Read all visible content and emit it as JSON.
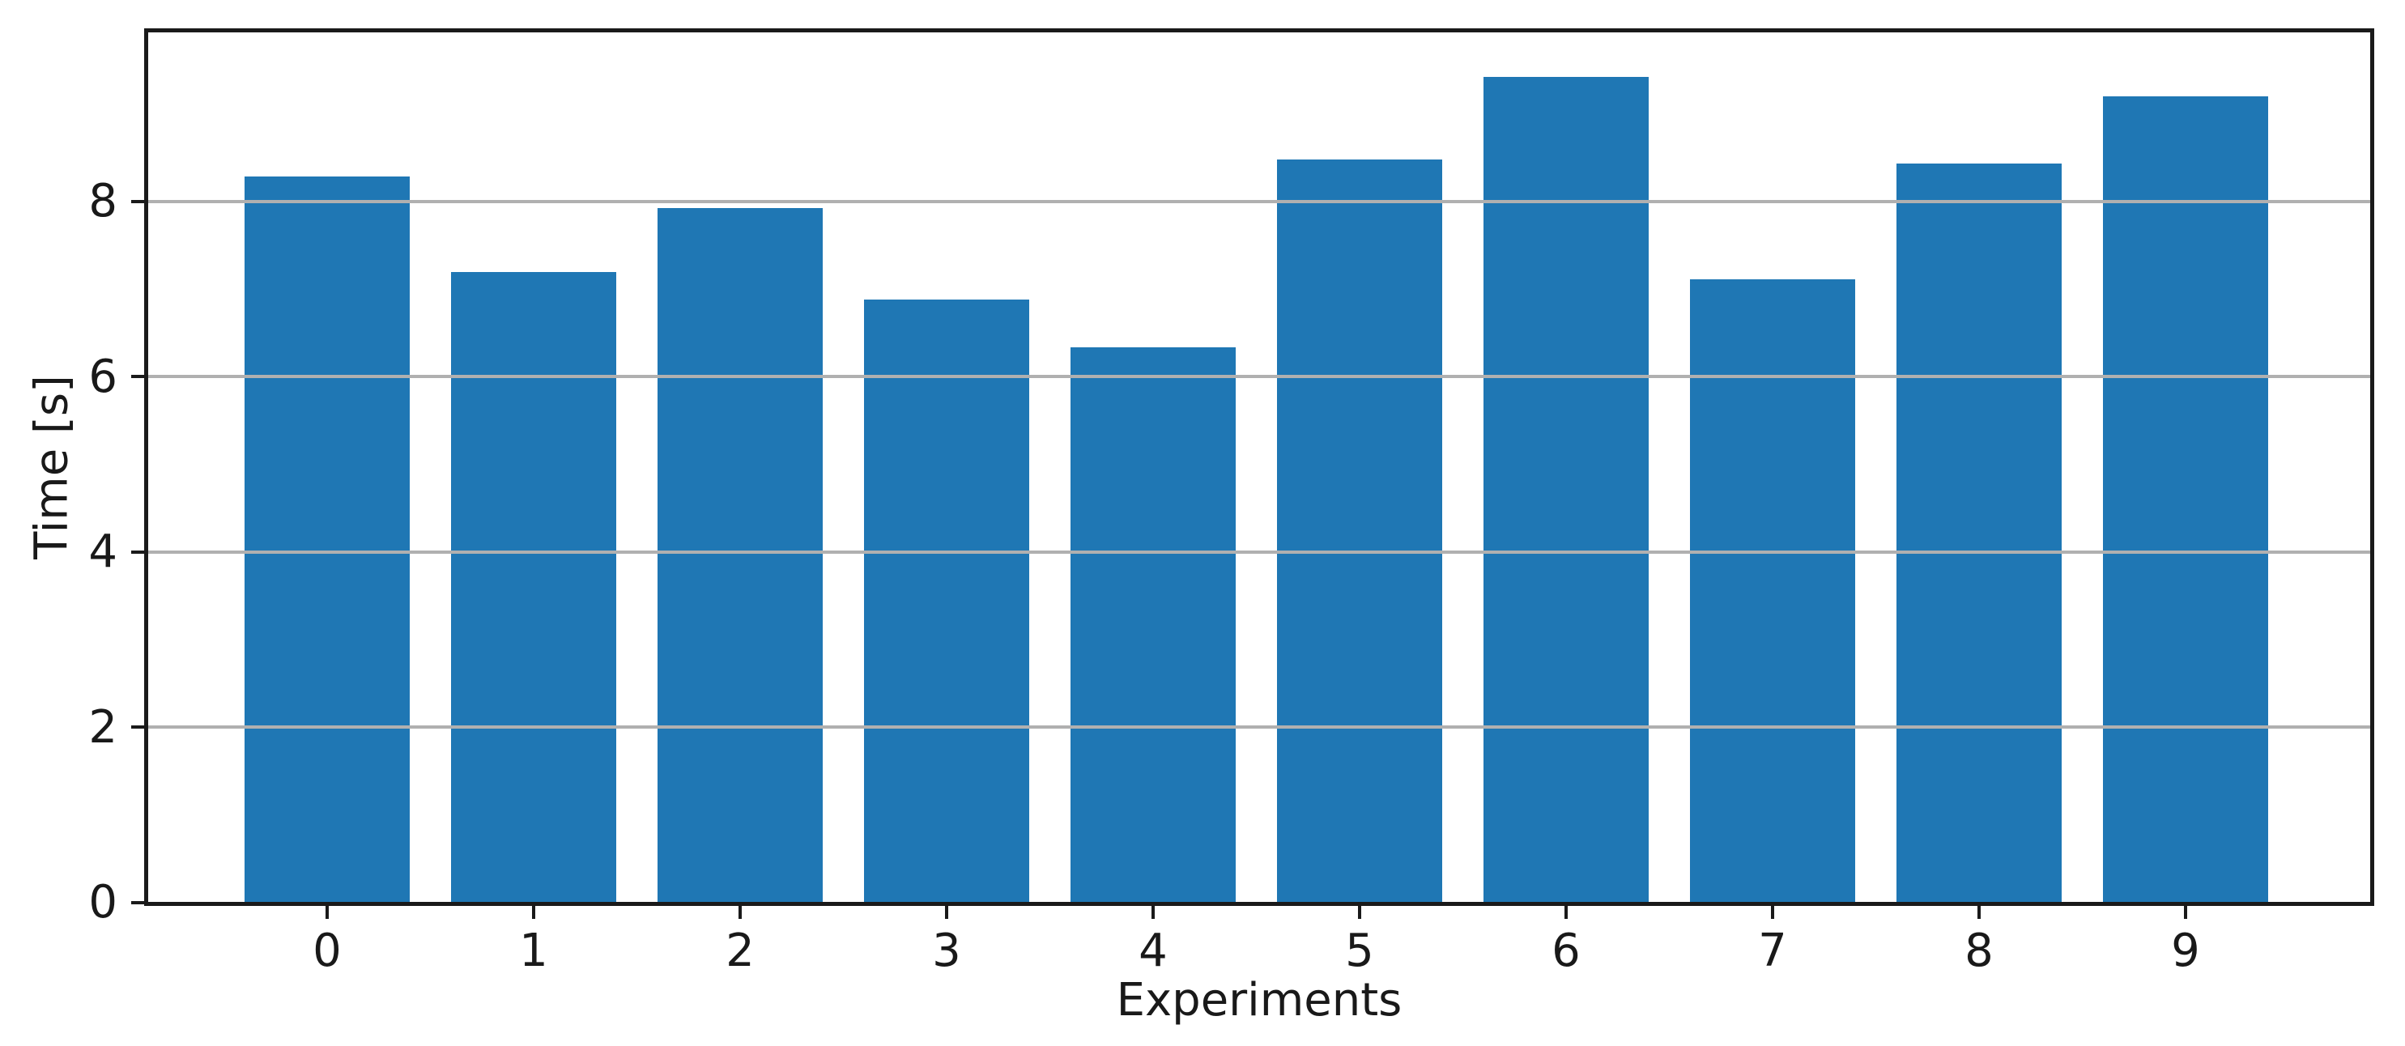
{
  "figure": {
    "background": "#ffffff"
  },
  "chart_data": {
    "type": "bar",
    "categories": [
      "0",
      "1",
      "2",
      "3",
      "4",
      "5",
      "6",
      "7",
      "8",
      "9"
    ],
    "values": [
      8.28,
      7.19,
      7.92,
      6.88,
      6.33,
      8.47,
      9.42,
      7.11,
      8.43,
      9.2
    ],
    "title": "",
    "xlabel": "Experiments",
    "ylabel": "Time [s]",
    "ylim": [
      0,
      9.93
    ],
    "yticks": [
      0,
      2,
      4,
      6,
      8
    ],
    "grid": "horizontal-y",
    "grid_above_bars": true,
    "legend": null,
    "colors": {
      "bar": "#1f77b4",
      "grid": "#b0b0b0",
      "spine": "#1a1a1a",
      "tick": "#1a1a1a",
      "text": "#191919",
      "background": "#ffffff"
    }
  }
}
